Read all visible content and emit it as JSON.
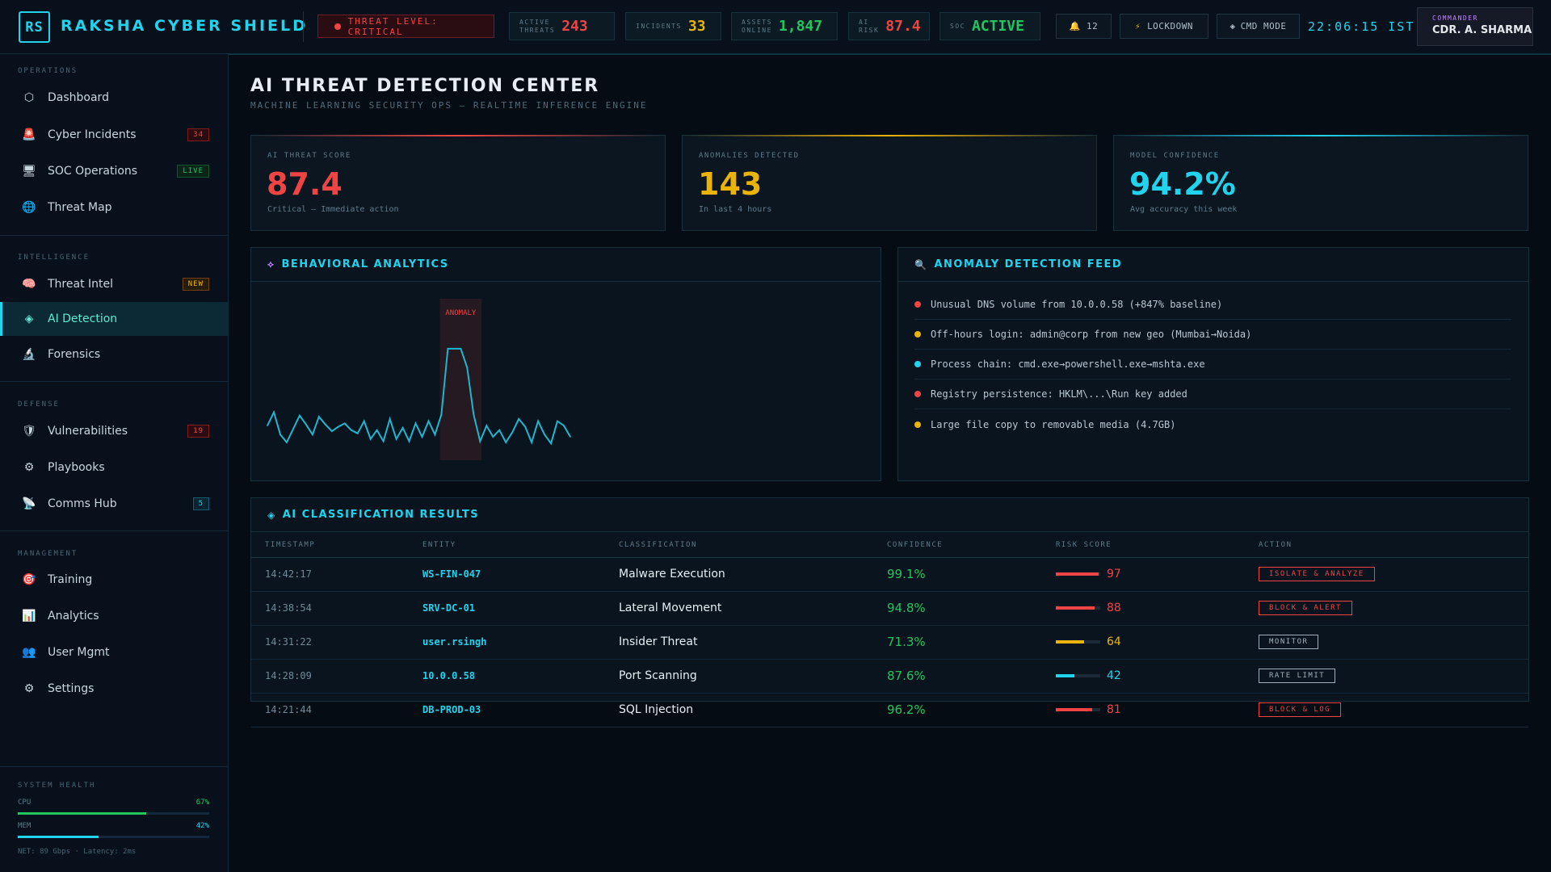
{
  "topbar": {
    "logo": "RS",
    "brand": "RAKSHA CYBER SHIELD",
    "threat_level": "THREAT LEVEL: CRITICAL",
    "stats": [
      {
        "label": "ACTIVE\nTHREATS",
        "value": "243",
        "color": "#ef4444"
      },
      {
        "label": "INCIDENTS",
        "value": "33",
        "color": "#eab308"
      },
      {
        "label": "ASSETS\nONLINE",
        "value": "1,847",
        "color": "#22c55e"
      },
      {
        "label": "AI\nRISK",
        "value": "87.4",
        "color": "#ef4444"
      },
      {
        "label": "SOC",
        "value": "ACTIVE",
        "color": "#22c55e"
      }
    ],
    "notifications": "12",
    "lockdown": "LOCKDOWN",
    "cmd_mode": "CMD MODE",
    "clock": "22:06:15 IST",
    "commander_role": "COMMANDER",
    "commander_name": "CDR. A. SHARMA"
  },
  "sidebar": {
    "sections": {
      "operations": "OPERATIONS",
      "intelligence": "INTELLIGENCE",
      "defense": "DEFENSE",
      "management": "MANAGEMENT"
    },
    "items": [
      {
        "label": "Dashboard",
        "icon": "hexagon-icon"
      },
      {
        "label": "Cyber Incidents",
        "icon": "siren-icon",
        "badge": "34"
      },
      {
        "label": "SOC Operations",
        "icon": "server-icon",
        "badge": "LIVE"
      },
      {
        "label": "Threat Map",
        "icon": "globe-icon"
      },
      {
        "label": "Threat Intel",
        "icon": "brain-icon",
        "badge": "NEW"
      },
      {
        "label": "AI Detection",
        "icon": "diamond-icon"
      },
      {
        "label": "Forensics",
        "icon": "microscope-icon"
      },
      {
        "label": "Vulnerabilities",
        "icon": "shield-icon",
        "badge": "19"
      },
      {
        "label": "Playbooks",
        "icon": "gear-icon"
      },
      {
        "label": "Comms Hub",
        "icon": "satellite-icon",
        "badge": "5"
      },
      {
        "label": "Training",
        "icon": "target-icon"
      },
      {
        "label": "Analytics",
        "icon": "bar-chart-icon"
      },
      {
        "label": "User Mgmt",
        "icon": "users-icon"
      },
      {
        "label": "Settings",
        "icon": "gear-icon"
      }
    ],
    "health": {
      "title": "SYSTEM HEALTH",
      "cpu_label": "CPU",
      "cpu_pct": "67%",
      "cpu_value": 0.67,
      "mem_label": "MEM",
      "mem_pct": "42%",
      "mem_value": 0.42,
      "net": "NET: 89 Gbps · Latency: 2ms"
    }
  },
  "main": {
    "title": "AI THREAT DETECTION CENTER",
    "subtitle": "MACHINE LEARNING SECURITY OPS — REALTIME INFERENCE ENGINE",
    "kpis": [
      {
        "label": "AI THREAT SCORE",
        "value": "87.4",
        "sub": "Critical — Immediate action",
        "color": "#ef4444"
      },
      {
        "label": "ANOMALIES DETECTED",
        "value": "143",
        "sub": "In last 4 hours",
        "color": "#eab308"
      },
      {
        "label": "MODEL CONFIDENCE",
        "value": "94.2%",
        "sub": "Avg accuracy this week",
        "color": "#22d3ee"
      }
    ],
    "behavioral": {
      "title": "BEHAVIORAL ANALYTICS",
      "anomaly_label": "ANOMALY"
    },
    "feed": {
      "title": "ANOMALY DETECTION FEED",
      "items": [
        {
          "text": "Unusual DNS volume from 10.0.0.58 (+847% baseline)",
          "color": "#ef4444"
        },
        {
          "text": "Off-hours login: admin@corp from new geo (Mumbai→Noida)",
          "color": "#eab308"
        },
        {
          "text": "Process chain: cmd.exe→powershell.exe→mshta.exe",
          "color": "#22d3ee"
        },
        {
          "text": "Registry persistence: HKLM\\...\\Run key added",
          "color": "#ef4444"
        },
        {
          "text": "Large file copy to removable media (4.7GB)",
          "color": "#eab308"
        }
      ]
    },
    "classification": {
      "title": "AI CLASSIFICATION RESULTS",
      "columns": [
        "TIMESTAMP",
        "ENTITY",
        "CLASSIFICATION",
        "CONFIDENCE",
        "RISK SCORE",
        "ACTION"
      ],
      "rows": [
        {
          "ts": "14:42:17",
          "entity": "WS-FIN-047",
          "cls": "Malware Execution",
          "conf": "99.1%",
          "risk": "97",
          "risk_color": "#ef4444",
          "action": "ISOLATE & ANALYZE",
          "action_color": "#ef4444"
        },
        {
          "ts": "14:38:54",
          "entity": "SRV-DC-01",
          "cls": "Lateral Movement",
          "conf": "94.8%",
          "risk": "88",
          "risk_color": "#ef4444",
          "action": "BLOCK & ALERT",
          "action_color": "#ef4444"
        },
        {
          "ts": "14:31:22",
          "entity": "user.rsingh",
          "cls": "Insider Threat",
          "conf": "71.3%",
          "risk": "64",
          "risk_color": "#eab308",
          "action": "MONITOR",
          "action_color": "#9fb0bc"
        },
        {
          "ts": "14:28:09",
          "entity": "10.0.0.58",
          "cls": "Port Scanning",
          "conf": "87.6%",
          "risk": "42",
          "risk_color": "#22d3ee",
          "action": "RATE LIMIT",
          "action_color": "#9fb0bc"
        },
        {
          "ts": "14:21:44",
          "entity": "DB-PROD-03",
          "cls": "SQL Injection",
          "conf": "96.2%",
          "risk": "81",
          "risk_color": "#ef4444",
          "action": "BLOCK & LOG",
          "action_color": "#ef4444"
        }
      ]
    }
  },
  "chart_data": {
    "type": "line",
    "title": "",
    "values": [
      18,
      30,
      10,
      3,
      15,
      27,
      19,
      10,
      26,
      19,
      13,
      17,
      20,
      14,
      11,
      22,
      6,
      14,
      4,
      24,
      6,
      16,
      4,
      20,
      8,
      22,
      10,
      28,
      87,
      87,
      87,
      70,
      28,
      4,
      18,
      8,
      14,
      3,
      12,
      24,
      17,
      3,
      22,
      10,
      2,
      22,
      18,
      8
    ],
    "anomaly_range": [
      27,
      33
    ],
    "ylim": [
      0,
      100
    ]
  }
}
